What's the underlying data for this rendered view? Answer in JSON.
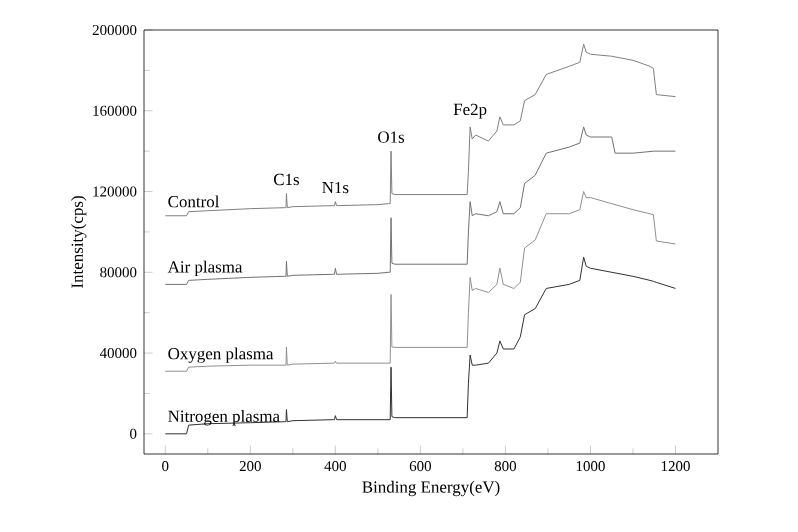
{
  "chart_data": {
    "type": "line",
    "xlabel": "Binding Energy(eV)",
    "ylabel": "Intensity(cps)",
    "x": [
      0,
      50,
      55,
      100,
      200,
      280,
      284,
      285,
      287,
      300,
      395,
      398,
      400,
      403,
      500,
      525,
      529,
      531,
      533,
      540,
      600,
      700,
      710,
      713,
      717,
      722,
      730,
      760,
      780,
      787,
      795,
      820,
      835,
      845,
      870,
      896,
      950,
      975,
      984,
      990,
      1000,
      1050,
      1100,
      1140,
      1148,
      1155,
      1200
    ],
    "series": [
      {
        "name": "Control",
        "color": "#808080",
        "values": [
          108000,
          108000,
          110000,
          110500,
          111500,
          112000,
          112000,
          119000,
          112000,
          112500,
          113000,
          113000,
          115000,
          113000,
          113500,
          114000,
          114000,
          140000,
          119000,
          118500,
          118500,
          118500,
          118500,
          130000,
          152000,
          146000,
          148000,
          145000,
          150000,
          157000,
          153000,
          153000,
          155000,
          165000,
          168000,
          178000,
          182000,
          184000,
          193000,
          189000,
          188000,
          187000,
          185000,
          182000,
          181000,
          168000,
          167000
        ]
      },
      {
        "name": "Air plasma",
        "color": "#707070",
        "x": [
          0,
          50,
          55,
          100,
          200,
          280,
          284,
          285,
          287,
          300,
          395,
          398,
          400,
          403,
          500,
          525,
          529,
          531,
          533,
          540,
          600,
          700,
          710,
          713,
          717,
          722,
          730,
          760,
          780,
          787,
          795,
          820,
          835,
          845,
          870,
          896,
          950,
          975,
          984,
          990,
          1000,
          1050,
          1058,
          1100,
          1150,
          1200
        ],
        "values": [
          74000,
          74000,
          76000,
          76500,
          77500,
          78000,
          78000,
          85500,
          78000,
          78500,
          79000,
          79000,
          82000,
          79000,
          79500,
          80000,
          80000,
          107000,
          84500,
          84000,
          84000,
          84000,
          84000,
          100000,
          115000,
          108000,
          109000,
          108000,
          110000,
          115000,
          109000,
          109000,
          112000,
          124000,
          128000,
          139000,
          142000,
          144000,
          152000,
          148000,
          147000,
          147000,
          139000,
          139000,
          140000,
          140000
        ]
      },
      {
        "name": "Oxygen plasma",
        "color": "#909090",
        "values": [
          31000,
          31000,
          33000,
          33500,
          34000,
          34000,
          34000,
          43000,
          34000,
          34500,
          35000,
          35000,
          36000,
          35000,
          35000,
          35000,
          35000,
          69000,
          43000,
          42800,
          42800,
          42800,
          42800,
          60000,
          77500,
          71000,
          72000,
          70000,
          74000,
          82000,
          74000,
          72000,
          75000,
          92000,
          96000,
          109000,
          109000,
          111000,
          120000,
          117000,
          117000,
          114000,
          111000,
          109000,
          108500,
          95500,
          94000
        ]
      },
      {
        "name": "Nitrogen plasma",
        "color": "#303030",
        "values": [
          0,
          0,
          4300,
          5000,
          5500,
          6000,
          6000,
          12000,
          6000,
          6500,
          7000,
          7000,
          9000,
          7000,
          7000,
          7000,
          7000,
          33000,
          8500,
          8000,
          8000,
          8000,
          8000,
          25000,
          39000,
          34000,
          34000,
          35000,
          40000,
          46000,
          42000,
          42000,
          48000,
          59000,
          62000,
          72000,
          74000,
          76000,
          87500,
          83000,
          82000,
          80000,
          78000,
          76000,
          75500,
          75000,
          72000
        ]
      }
    ],
    "annotations": [
      {
        "text": "C1s",
        "x": 285,
        "y": 119000
      },
      {
        "text": "N1s",
        "x": 400,
        "y": 115000
      },
      {
        "text": "O1s",
        "x": 531,
        "y": 140000
      },
      {
        "text": "Fe2p",
        "x": 717,
        "y": 152000
      }
    ],
    "xlim": [
      -50,
      1300
    ],
    "ylim": [
      -10000,
      200000
    ],
    "xticks": [
      0,
      200,
      400,
      600,
      800,
      1000,
      1200
    ],
    "yticks": [
      0,
      40000,
      80000,
      120000,
      160000,
      200000
    ],
    "grid": false,
    "legend": false,
    "marker": "none",
    "line_style": "solid"
  }
}
